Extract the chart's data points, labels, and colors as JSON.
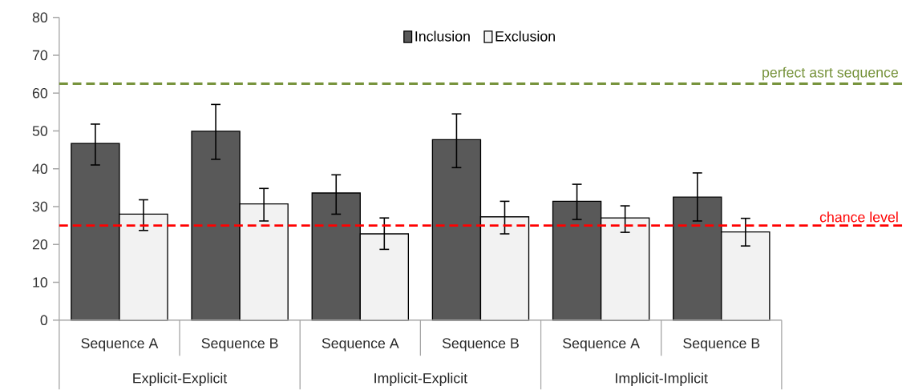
{
  "chart_data": {
    "type": "bar",
    "categories": [
      "Sequence A",
      "Sequence B",
      "Sequence A",
      "Sequence B",
      "Sequence A",
      "Sequence B"
    ],
    "series": [
      {
        "name": "Inclusion",
        "color": "#595959",
        "values": [
          46.7,
          49.9,
          33.6,
          47.7,
          31.4,
          32.5
        ],
        "errors": [
          [
            41.0,
            51.8
          ],
          [
            42.5,
            57.0
          ],
          [
            28.0,
            38.4
          ],
          [
            40.3,
            54.5
          ],
          [
            26.6,
            35.9
          ],
          [
            26.2,
            38.9
          ]
        ]
      },
      {
        "name": "Exclusion",
        "color": "#f2f2f2",
        "values": [
          28.0,
          30.7,
          22.8,
          27.3,
          27.0,
          23.3
        ],
        "errors": [
          [
            23.7,
            31.8
          ],
          [
            26.2,
            34.8
          ],
          [
            18.7,
            27.0
          ],
          [
            22.8,
            31.4
          ],
          [
            23.2,
            30.2
          ],
          [
            19.6,
            26.9
          ]
        ]
      }
    ],
    "annotations": [
      "Explicit-Explicit",
      "Implicit-Explicit",
      "Implicit-Implicit"
    ],
    "ylim": [
      0,
      80
    ],
    "yticks": [
      0,
      10,
      20,
      30,
      40,
      50,
      60,
      70,
      80
    ],
    "ref_lines": [
      {
        "axis": "y",
        "value": 62.5,
        "label": "perfect asrt sequence",
        "color": "#77933c",
        "line_style": "dashed"
      },
      {
        "axis": "y",
        "value": 25,
        "label": "chance level",
        "color": "#ff0000",
        "line_style": "dashed"
      }
    ],
    "grid": false,
    "legend": "top"
  }
}
